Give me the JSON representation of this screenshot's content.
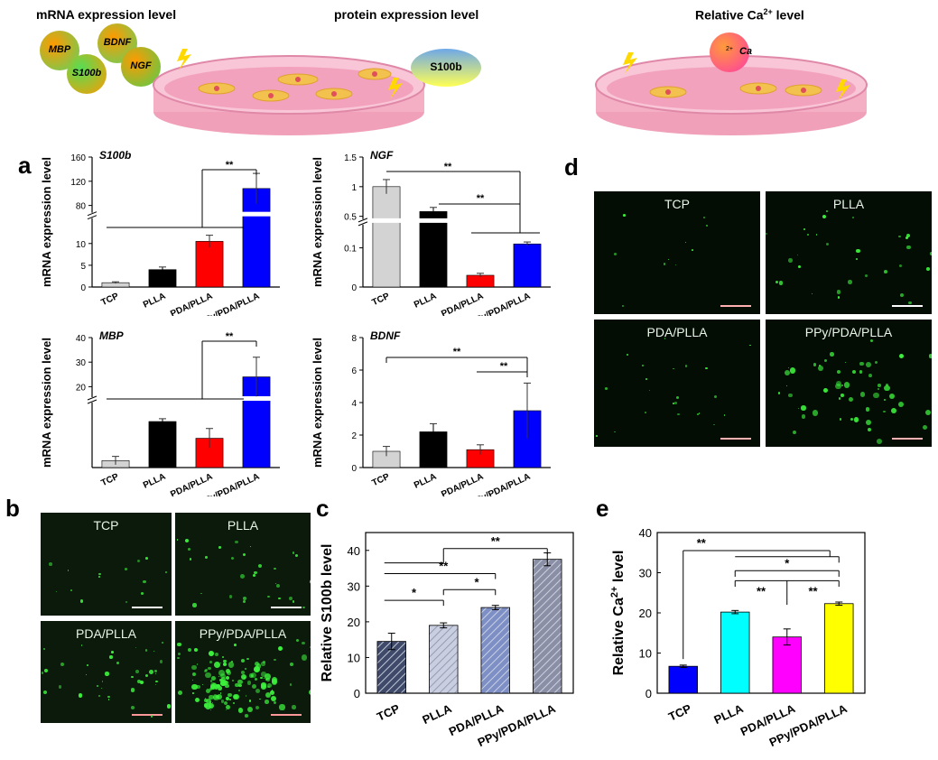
{
  "header": {
    "mrna_title": "mRNA expression level",
    "protein_title": "protein expression level",
    "ca_title_pre": "Relative Ca",
    "ca_title_sup": "2+",
    "ca_title_post": " level",
    "bubbles": [
      "MBP",
      "BDNF",
      "S100b",
      "NGF"
    ],
    "s100b_bubble": "S100b",
    "ca_bubble": "Ca",
    "ca_bubble_sup": "2+"
  },
  "panels": {
    "a": "a",
    "b": "b",
    "c": "c",
    "d": "d",
    "e": "e"
  },
  "images_b": {
    "tiles": [
      "TCP",
      "PLLA",
      "PDA/PLLA",
      "PPy/PDA/PLLA"
    ],
    "scale_colors": [
      "#ffffff",
      "#ffffff",
      "#ff9999",
      "#ff9999"
    ]
  },
  "images_d": {
    "tiles": [
      "TCP",
      "PLLA",
      "PDA/PLLA",
      "PPy/PDA/PLLA"
    ],
    "scale_colors": [
      "#ffb0b0",
      "#ffffff",
      "#ffb0b0",
      "#ffb0b0"
    ]
  },
  "chart_data": [
    {
      "id": "a-S100b",
      "type": "bar",
      "title": "S100b",
      "ylabel": "mRNA expression level",
      "categories": [
        "TCP",
        "PLLA",
        "PDA/PLLA",
        "PPy/PDA/PLLA"
      ],
      "values": [
        1.0,
        4.0,
        10.5,
        108
      ],
      "errors": [
        0.2,
        0.6,
        1.4,
        25
      ],
      "colors": [
        "#d3d3d3",
        "#000000",
        "#ff0000",
        "#0000ff"
      ],
      "broken_axis": {
        "lower": [
          0,
          15
        ],
        "upper": [
          65,
          160
        ]
      },
      "yticks_lower": [
        0,
        5,
        10
      ],
      "yticks_upper": [
        80,
        120,
        160
      ],
      "significance": [
        "**"
      ]
    },
    {
      "id": "a-NGF",
      "type": "bar",
      "title": "NGF",
      "ylabel": "mRNA expression level",
      "categories": [
        "TCP",
        "PLLA",
        "PDA/PLLA",
        "PPy/PDA/PLLA"
      ],
      "values": [
        1.0,
        0.58,
        0.03,
        0.11
      ],
      "errors": [
        0.12,
        0.07,
        0.005,
        0.005
      ],
      "colors": [
        "#d3d3d3",
        "#000000",
        "#ff0000",
        "#0000ff"
      ],
      "broken_axis": {
        "lower": [
          0,
          0.15
        ],
        "upper": [
          0.42,
          1.5
        ]
      },
      "yticks_lower": [
        0.0,
        0.1
      ],
      "yticks_upper": [
        0.5,
        1.0,
        1.5
      ],
      "significance": [
        "**",
        "**"
      ]
    },
    {
      "id": "a-MBP",
      "type": "bar",
      "title": "MBP",
      "ylabel": "mRNA expression level",
      "categories": [
        "TCP",
        "PLLA",
        "PDA/PLLA",
        "PPy/PDA/PLLA"
      ],
      "values": [
        0.5,
        3.3,
        2.1,
        24
      ],
      "errors": [
        0.3,
        0.2,
        0.7,
        8
      ],
      "colors": [
        "#d3d3d3",
        "#000000",
        "#ff0000",
        "#0000ff"
      ],
      "broken_axis": {
        "lower": [
          0,
          4.4
        ],
        "upper": [
          15,
          40
        ]
      },
      "yticks_upper": [
        20,
        30,
        40
      ],
      "significance": [
        "**"
      ]
    },
    {
      "id": "a-BDNF",
      "type": "bar",
      "title": "BDNF",
      "ylabel": "mRNA expression level",
      "categories": [
        "TCP",
        "PLLA",
        "PDA/PLLA",
        "PPy/PDA/PLLA"
      ],
      "values": [
        1.0,
        2.2,
        1.1,
        3.5
      ],
      "errors": [
        0.3,
        0.5,
        0.3,
        1.7
      ],
      "colors": [
        "#d3d3d3",
        "#000000",
        "#ff0000",
        "#0000ff"
      ],
      "ylim": [
        0,
        8
      ],
      "yticks": [
        0,
        2,
        4,
        6,
        8
      ],
      "significance": [
        "**",
        "**"
      ]
    },
    {
      "id": "c",
      "type": "bar",
      "title": "",
      "ylabel": "Relative S100b level",
      "categories": [
        "TCP",
        "PLLA",
        "PDA/PLLA",
        "PPy/PDA/PLLA"
      ],
      "values": [
        14.5,
        19,
        24,
        37.5
      ],
      "errors": [
        2.3,
        0.7,
        0.6,
        1.8
      ],
      "colors": [
        "#3f4a6b",
        "#c9cfe0",
        "#7d8fc4",
        "#8a8fa6"
      ],
      "ylim": [
        0,
        45
      ],
      "yticks": [
        0,
        10,
        20,
        30,
        40
      ],
      "significance": [
        "*",
        "*",
        "**",
        "**"
      ]
    },
    {
      "id": "e",
      "type": "bar",
      "title": "",
      "ylabel": "Relative Ca2+ level",
      "categories": [
        "TCP",
        "PLLA",
        "PDA/PLLA",
        "PPy/PDA/PLLA"
      ],
      "values": [
        6.7,
        20.2,
        14,
        22.3
      ],
      "errors": [
        0.3,
        0.4,
        2,
        0.4
      ],
      "colors": [
        "#0000ff",
        "#00ffff",
        "#ff00ff",
        "#ffff00"
      ],
      "ylim": [
        0,
        40
      ],
      "yticks": [
        0,
        10,
        20,
        30,
        40
      ],
      "significance": [
        "**",
        "*",
        "**",
        "**"
      ]
    }
  ]
}
